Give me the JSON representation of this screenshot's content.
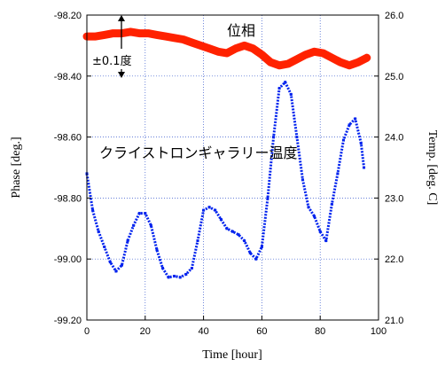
{
  "chart_data": {
    "type": "line",
    "xlabel": "Time [hour]",
    "ylabel_left": "Phase [deg.]",
    "ylabel_right": "Temp. [deg. C]",
    "xlim": [
      0,
      100
    ],
    "ylim_left": [
      -99.2,
      -98.2
    ],
    "ylim_right": [
      21.0,
      26.0
    ],
    "x_ticks": [
      "0",
      "20",
      "40",
      "60",
      "80",
      "100"
    ],
    "y_left_ticks": [
      "-98.20",
      "-98.40",
      "-98.60",
      "-98.80",
      "-99.00",
      "-99.20"
    ],
    "y_right_ticks": [
      "26.0",
      "25.0",
      "24.0",
      "23.0",
      "22.0",
      "21.0"
    ],
    "grid": true,
    "annotations": {
      "phase_label": "位相",
      "temp_label": "クライストロンギャラリー温度",
      "scale_label": "±0.1度"
    },
    "series": [
      {
        "axis": "left",
        "color": "#ff2200",
        "points": [
          [
            0,
            -98.27
          ],
          [
            3,
            -98.27
          ],
          [
            6,
            -98.265
          ],
          [
            9,
            -98.26
          ],
          [
            12,
            -98.26
          ],
          [
            15,
            -98.255
          ],
          [
            18,
            -98.26
          ],
          [
            21,
            -98.26
          ],
          [
            24,
            -98.265
          ],
          [
            27,
            -98.27
          ],
          [
            30,
            -98.275
          ],
          [
            33,
            -98.28
          ],
          [
            36,
            -98.29
          ],
          [
            39,
            -98.3
          ],
          [
            42,
            -98.31
          ],
          [
            45,
            -98.32
          ],
          [
            48,
            -98.325
          ],
          [
            51,
            -98.31
          ],
          [
            54,
            -98.3
          ],
          [
            57,
            -98.31
          ],
          [
            60,
            -98.33
          ],
          [
            63,
            -98.355
          ],
          [
            66,
            -98.365
          ],
          [
            69,
            -98.36
          ],
          [
            72,
            -98.345
          ],
          [
            75,
            -98.33
          ],
          [
            78,
            -98.32
          ],
          [
            81,
            -98.325
          ],
          [
            84,
            -98.34
          ],
          [
            87,
            -98.355
          ],
          [
            90,
            -98.365
          ],
          [
            93,
            -98.355
          ],
          [
            96,
            -98.34
          ]
        ]
      },
      {
        "axis": "right",
        "color": "#0022ee",
        "points": [
          [
            0,
            23.4
          ],
          [
            2,
            22.8
          ],
          [
            4,
            22.45
          ],
          [
            6,
            22.2
          ],
          [
            8,
            21.95
          ],
          [
            10,
            21.8
          ],
          [
            12,
            21.9
          ],
          [
            14,
            22.3
          ],
          [
            16,
            22.55
          ],
          [
            18,
            22.75
          ],
          [
            20,
            22.75
          ],
          [
            22,
            22.55
          ],
          [
            24,
            22.15
          ],
          [
            26,
            21.85
          ],
          [
            28,
            21.7
          ],
          [
            30,
            21.72
          ],
          [
            32,
            21.7
          ],
          [
            34,
            21.75
          ],
          [
            36,
            21.85
          ],
          [
            38,
            22.3
          ],
          [
            40,
            22.8
          ],
          [
            42,
            22.85
          ],
          [
            44,
            22.8
          ],
          [
            46,
            22.65
          ],
          [
            48,
            22.5
          ],
          [
            50,
            22.45
          ],
          [
            52,
            22.4
          ],
          [
            54,
            22.3
          ],
          [
            56,
            22.1
          ],
          [
            58,
            22.0
          ],
          [
            60,
            22.2
          ],
          [
            62,
            23.0
          ],
          [
            64,
            24.0
          ],
          [
            66,
            24.8
          ],
          [
            68,
            24.9
          ],
          [
            70,
            24.7
          ],
          [
            72,
            24.0
          ],
          [
            74,
            23.3
          ],
          [
            76,
            22.85
          ],
          [
            78,
            22.7
          ],
          [
            80,
            22.45
          ],
          [
            82,
            22.3
          ],
          [
            84,
            22.9
          ],
          [
            86,
            23.4
          ],
          [
            88,
            23.95
          ],
          [
            90,
            24.2
          ],
          [
            92,
            24.3
          ],
          [
            94,
            23.9
          ],
          [
            95,
            23.5
          ]
        ]
      }
    ]
  }
}
